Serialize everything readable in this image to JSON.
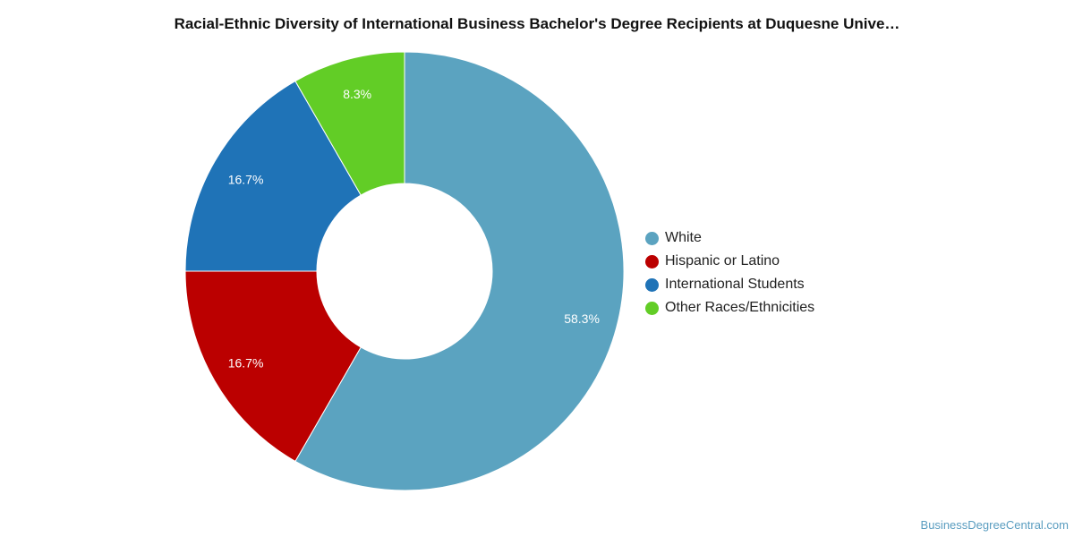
{
  "chart_data": {
    "type": "pie",
    "title": "Racial-Ethnic Diversity of International Business Bachelor's Degree Recipients at Duquesne Unive…",
    "labels": [
      "White",
      "Hispanic or Latino",
      "International Students",
      "Other Races/Ethnicities"
    ],
    "values": [
      58.3,
      16.7,
      16.7,
      8.3
    ],
    "value_labels": [
      "58.3%",
      "16.7%",
      "16.7%",
      "8.3%"
    ],
    "colors": [
      "#5ba3c0",
      "#bb0000",
      "#1f73b7",
      "#62cd26"
    ],
    "donut": true,
    "legend_position": "right"
  },
  "watermark": "BusinessDegreeCentral.com"
}
